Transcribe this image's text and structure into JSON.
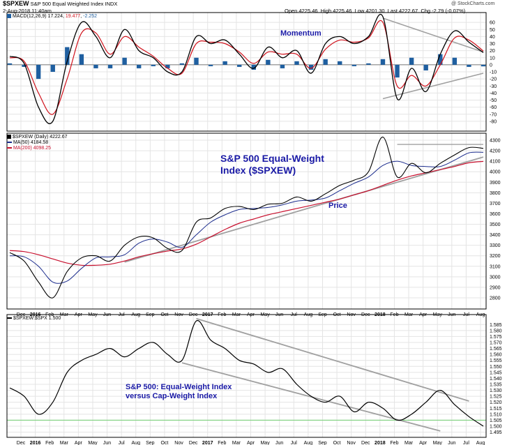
{
  "header": {
    "ticker": "$SPXEW",
    "name": "S&P 500 Equal Weighted Index",
    "exchange": "INDX",
    "datetime": "2-Aug-2018 11:40am",
    "open_label": "Open",
    "open": "4225.46",
    "high_label": "High",
    "high": "4225.46",
    "low_label": "Low",
    "low": "4201.30",
    "last_label": "Last",
    "last": "4222.67",
    "chg_label": "Chg",
    "chg": "-2.79 (-0.07%)",
    "watermark": "@ StockCharts.com"
  },
  "legends": {
    "macd_title": "MACD(12,26,9)",
    "macd_v1": "17.224",
    "macd_v2": "19.477",
    "macd_v3": "-2.252",
    "price_title": "$SPXEW (Daily) 4222.67",
    "ma50": "MA(50) 4184.58",
    "ma200": "MA(200) 4098.25",
    "ratio_title": "$SPXEW:$SPX 1.500"
  },
  "annotations": {
    "momentum": "Momentum",
    "price_title_line1": "S&P 500 Equal-Weight",
    "price_title_line2": "Index ($SPXEW)",
    "price": "Price",
    "ratio_line1": "S&P 500: Equal-Weight Index",
    "ratio_line2": "versus Cap-Weight Index"
  },
  "colors": {
    "line": "#000000",
    "signal": "#d0101a",
    "histogram": "#1f5fa0",
    "ma50": "#1a2b8c",
    "ma200": "#c8102e",
    "trendline": "#a0a0a0",
    "ref_line": "#7ed07e",
    "annotation": "#1a1aa6",
    "grid": "#e4e4e4"
  },
  "chart_data": [
    {
      "type": "line",
      "panel": "MACD",
      "title": "MACD(12,26,9)",
      "ylim": [
        -90,
        70
      ],
      "yticks": [
        60,
        50,
        40,
        30,
        20,
        10,
        0,
        -10,
        -20,
        -30,
        -40,
        -50,
        -60,
        -70,
        -80
      ],
      "x": [
        "Nov 2015",
        "Dec 2015",
        "Jan 2016",
        "Feb 2016",
        "Mar 2016",
        "Apr 2016",
        "May 2016",
        "Jun 2016",
        "Jul 2016",
        "Aug 2016",
        "Sep 2016",
        "Oct 2016",
        "Nov 2016",
        "Dec 2016",
        "Jan 2017",
        "Feb 2017",
        "Mar 2017",
        "Apr 2017",
        "May 2017",
        "Jun 2017",
        "Jul 2017",
        "Aug 2017",
        "Sep 2017",
        "Oct 2017",
        "Nov 2017",
        "Dec 2017",
        "Jan 2018",
        "Feb 2018",
        "Mar 2018",
        "Apr 2018",
        "May 2018",
        "Jun 2018",
        "Jul 2018",
        "Aug 2018"
      ],
      "series": [
        {
          "name": "MACD",
          "values": [
            12,
            2,
            -60,
            -80,
            5,
            60,
            40,
            10,
            50,
            20,
            10,
            -10,
            -10,
            40,
            30,
            35,
            15,
            -5,
            25,
            10,
            20,
            -12,
            30,
            40,
            30,
            40,
            68,
            -48,
            -5,
            -38,
            15,
            48,
            32,
            17.224
          ]
        },
        {
          "name": "Signal",
          "values": [
            10,
            5,
            -40,
            -70,
            -20,
            45,
            45,
            15,
            40,
            25,
            12,
            -5,
            -12,
            30,
            32,
            30,
            18,
            2,
            18,
            15,
            15,
            -5,
            22,
            35,
            32,
            38,
            60,
            -30,
            -15,
            -30,
            0,
            38,
            35,
            19.477
          ]
        },
        {
          "name": "Histogram",
          "values": [
            2,
            -3,
            -20,
            -10,
            25,
            15,
            -5,
            -5,
            10,
            -5,
            -2,
            -5,
            2,
            10,
            -2,
            5,
            -3,
            -7,
            7,
            -5,
            5,
            -7,
            8,
            5,
            -2,
            2,
            8,
            -18,
            10,
            -8,
            15,
            10,
            -3,
            -2.252
          ]
        }
      ]
    },
    {
      "type": "line",
      "panel": "Price",
      "title": "$SPXEW (Daily) 4222.67",
      "ylim": [
        2720,
        4340
      ],
      "yticks": [
        4300,
        4200,
        4100,
        4000,
        3900,
        3800,
        3700,
        3600,
        3500,
        3400,
        3300,
        3200,
        3100,
        3000,
        2900,
        2800
      ],
      "x": [
        "Nov 2015",
        "Dec 2015",
        "Jan 2016",
        "Feb 2016",
        "Mar 2016",
        "Apr 2016",
        "May 2016",
        "Jun 2016",
        "Jul 2016",
        "Aug 2016",
        "Sep 2016",
        "Oct 2016",
        "Nov 2016",
        "Dec 2016",
        "Jan 2017",
        "Feb 2017",
        "Mar 2017",
        "Apr 2017",
        "May 2017",
        "Jun 2017",
        "Jul 2017",
        "Aug 2017",
        "Sep 2017",
        "Oct 2017",
        "Nov 2017",
        "Dec 2017",
        "Jan 2018",
        "Feb 2018",
        "Mar 2018",
        "Apr 2018",
        "May 2018",
        "Jun 2018",
        "Jul 2018",
        "Aug 2018"
      ],
      "series": [
        {
          "name": "$SPXEW",
          "values": [
            3230,
            3150,
            2950,
            2800,
            3050,
            3180,
            3200,
            3150,
            3300,
            3380,
            3370,
            3270,
            3250,
            3520,
            3560,
            3650,
            3670,
            3640,
            3690,
            3700,
            3760,
            3720,
            3790,
            3870,
            3920,
            4000,
            4330,
            3950,
            4080,
            3990,
            4080,
            4160,
            4230,
            4222.67
          ]
        },
        {
          "name": "MA(50)",
          "values": [
            3200,
            3190,
            3100,
            2950,
            2960,
            3080,
            3180,
            3190,
            3210,
            3320,
            3360,
            3330,
            3280,
            3400,
            3520,
            3590,
            3640,
            3650,
            3660,
            3685,
            3720,
            3730,
            3750,
            3820,
            3890,
            3950,
            4060,
            4100,
            4060,
            4050,
            4050,
            4110,
            4180,
            4184.58
          ]
        },
        {
          "name": "MA(200)",
          "values": [
            3250,
            3240,
            3210,
            3170,
            3130,
            3110,
            3110,
            3120,
            3150,
            3190,
            3220,
            3245,
            3265,
            3310,
            3380,
            3450,
            3510,
            3550,
            3590,
            3620,
            3650,
            3680,
            3710,
            3740,
            3780,
            3820,
            3870,
            3920,
            3960,
            3990,
            4020,
            4050,
            4085,
            4098.25
          ]
        }
      ]
    },
    {
      "type": "line",
      "panel": "Ratio",
      "title": "$SPXEW:$SPX 1.500",
      "ylim": [
        1.493,
        1.591
      ],
      "yticks": [
        1.585,
        1.58,
        1.575,
        1.57,
        1.565,
        1.56,
        1.555,
        1.55,
        1.545,
        1.54,
        1.535,
        1.53,
        1.525,
        1.52,
        1.515,
        1.51,
        1.505,
        1.5,
        1.495
      ],
      "x": [
        "Nov 2015",
        "Dec 2015",
        "Jan 2016",
        "Feb 2016",
        "Mar 2016",
        "Apr 2016",
        "May 2016",
        "Jun 2016",
        "Jul 2016",
        "Aug 2016",
        "Sep 2016",
        "Oct 2016",
        "Nov 2016",
        "Dec 2016",
        "Jan 2017",
        "Feb 2017",
        "Mar 2017",
        "Apr 2017",
        "May 2017",
        "Jun 2017",
        "Jul 2017",
        "Aug 2017",
        "Sep 2017",
        "Oct 2017",
        "Nov 2017",
        "Dec 2017",
        "Jan 2018",
        "Feb 2018",
        "Mar 2018",
        "Apr 2018",
        "May 2018",
        "Jun 2018",
        "Jul 2018",
        "Aug 2018"
      ],
      "series": [
        {
          "name": "$SPXEW:$SPX",
          "values": [
            1.532,
            1.525,
            1.51,
            1.52,
            1.545,
            1.555,
            1.56,
            1.565,
            1.558,
            1.565,
            1.57,
            1.56,
            1.555,
            1.588,
            1.572,
            1.565,
            1.555,
            1.552,
            1.545,
            1.548,
            1.535,
            1.525,
            1.52,
            1.525,
            1.512,
            1.52,
            1.515,
            1.505,
            1.51,
            1.52,
            1.53,
            1.518,
            1.508,
            1.5
          ]
        }
      ],
      "reference_line": 1.505
    }
  ],
  "x_axis_labels": [
    "Dec",
    "2016",
    "Feb",
    "Mar",
    "Apr",
    "May",
    "Jun",
    "Jul",
    "Aug",
    "Sep",
    "Oct",
    "Nov",
    "Dec",
    "2017",
    "Feb",
    "Mar",
    "Apr",
    "May",
    "Jun",
    "Jul",
    "Aug",
    "Sep",
    "Oct",
    "Nov",
    "Dec",
    "2018",
    "Feb",
    "Mar",
    "Apr",
    "May",
    "Jun",
    "Jul",
    "Aug"
  ],
  "x_axis_bold": [
    "2016",
    "2017",
    "2018"
  ]
}
